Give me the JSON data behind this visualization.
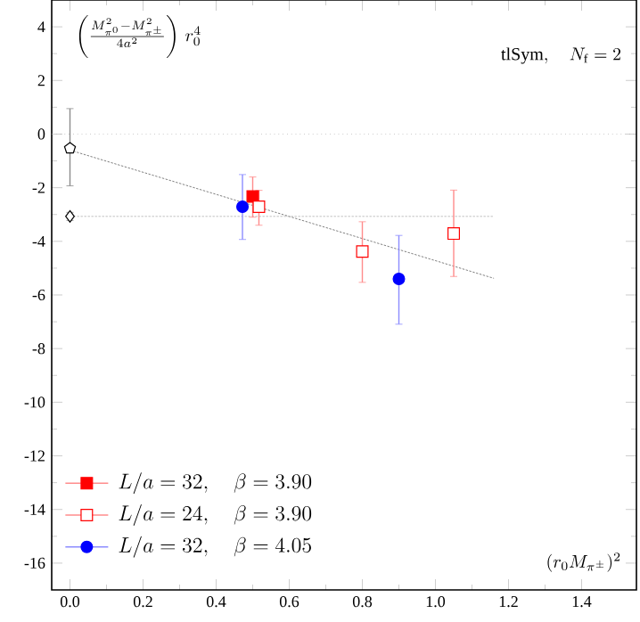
{
  "chart_data": {
    "type": "scatter",
    "xlabel": "(r_0 M_{\\pi^\\pm})^2",
    "annotations": [
      "\\left(\\frac{M^2_{\\pi^0}-M^2_{\\pi^\\pm}}{4a^2}\\right)\\, r_0^4",
      "\\mathrm{tlSym},\\quad N_\\mathrm{f}=2"
    ],
    "xlim": [
      -0.05,
      1.55
    ],
    "ylim": [
      -17,
      5
    ],
    "xticks": [
      {
        "value": 0,
        "label": "0.0"
      },
      {
        "value": 0.2,
        "label": "0.2"
      },
      {
        "value": 0.4,
        "label": "0.4"
      },
      {
        "value": 0.6,
        "label": "0.6"
      },
      {
        "value": 0.8,
        "label": "0.8"
      },
      {
        "value": 1,
        "label": "1.0"
      },
      {
        "value": 1.2,
        "label": "1.2"
      },
      {
        "value": 1.4,
        "label": "1.4"
      }
    ],
    "yticks": [
      -16,
      -14,
      -12,
      -10,
      -8,
      -6,
      -4,
      -2,
      0,
      2,
      4
    ],
    "grid": false,
    "legend": "bottom left",
    "ref_lines": [
      {
        "axis": "y",
        "value": 0,
        "color": "#b0b0b0",
        "line_style": "dotted"
      }
    ],
    "series": [
      {
        "type": "line",
        "x": [
          0,
          1.16
        ],
        "values": [
          -0.6,
          -5.38
        ],
        "color": "#606060",
        "line_style": "dotted",
        "marker": "none"
      },
      {
        "type": "line",
        "x": [
          0,
          1.16
        ],
        "values": [
          -3.07,
          -3.07
        ],
        "color": "#b0b0b0",
        "line_style": "dotted",
        "marker": "none"
      },
      {
        "name": "L/a=32,\\quad \\beta=3.90",
        "x": [
          0.5
        ],
        "values": [
          -2.33
        ],
        "errors": [
          [
            -3.1,
            -1.6
          ]
        ],
        "xerrors": [
          0.01
        ],
        "color": "#ff0000",
        "marker": "square"
      },
      {
        "name": "L/a=24,\\quad \\beta=3.90",
        "x": [
          0.517,
          0.8,
          1.05
        ],
        "values": [
          -2.71,
          -4.38,
          -3.71
        ],
        "errors": [
          [
            -3.4,
            -2.1
          ],
          [
            -5.53,
            -3.27
          ],
          [
            -5.31,
            -2.09
          ]
        ],
        "xerrors": [
          0.01,
          0.01,
          0.01
        ],
        "color": "#ff0000",
        "marker": "square"
      },
      {
        "name": "L/a=32,\\quad \\beta=4.05",
        "x": [
          0.472,
          0.9
        ],
        "values": [
          -2.71,
          -5.4
        ],
        "errors": [
          [
            -3.93,
            -1.51
          ],
          [
            -7.09,
            -3.78
          ]
        ],
        "xerrors": [
          0.01,
          0.01
        ],
        "color": "#0000ff",
        "marker": "circle"
      },
      {
        "x": [
          0
        ],
        "values": [
          -0.53
        ],
        "errors": [
          [
            -1.93,
            0.95
          ]
        ],
        "color": "#000000"
      },
      {
        "x": [
          0
        ],
        "values": [
          -3.07
        ],
        "errors": [
          [
            -3.22,
            -2.92
          ]
        ],
        "color": "#000000",
        "marker": "diamond"
      }
    ]
  }
}
